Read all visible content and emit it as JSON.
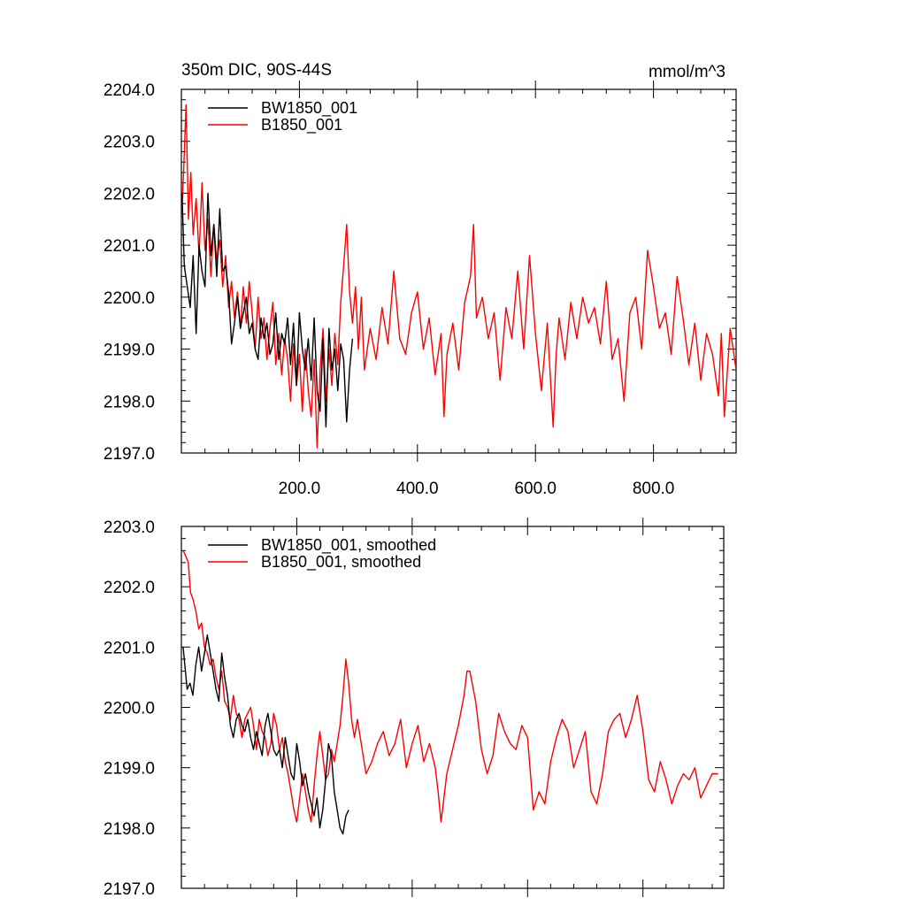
{
  "chart_data": [
    {
      "type": "line",
      "title": "350m DIC, 90S-44S",
      "units": "mmol/m^3",
      "xlim": [
        0,
        940
      ],
      "ylim": [
        2197.0,
        2204.0
      ],
      "x_ticks": [
        200,
        400,
        600,
        800
      ],
      "x_tick_labels": [
        "200.0",
        "400.0",
        "600.0",
        "800.0"
      ],
      "y_ticks": [
        2197,
        2198,
        2199,
        2200,
        2201,
        2202,
        2203,
        2204
      ],
      "y_tick_labels": [
        "2197.0",
        "2198.0",
        "2199.0",
        "2200.0",
        "2201.0",
        "2202.0",
        "2203.0",
        "2204.0"
      ],
      "legend_position": "top-left",
      "series": [
        {
          "name": "BW1850_001",
          "color": "#000000",
          "x": [
            1,
            5,
            10,
            15,
            20,
            25,
            30,
            35,
            40,
            45,
            50,
            55,
            60,
            65,
            70,
            75,
            80,
            85,
            90,
            95,
            100,
            105,
            110,
            115,
            120,
            125,
            130,
            135,
            140,
            145,
            150,
            155,
            160,
            165,
            170,
            175,
            180,
            185,
            190,
            195,
            200,
            205,
            210,
            215,
            220,
            225,
            230,
            235,
            240,
            245,
            250,
            255,
            260,
            265,
            270,
            275,
            280,
            285,
            290
          ],
          "y": [
            2202.0,
            2200.6,
            2200.2,
            2199.8,
            2200.8,
            2199.3,
            2201.0,
            2200.5,
            2200.2,
            2202.0,
            2200.8,
            2201.4,
            2200.4,
            2201.7,
            2200.5,
            2200.6,
            2200.1,
            2199.1,
            2199.5,
            2200.0,
            2199.4,
            2199.7,
            2200.0,
            2199.3,
            2199.5,
            2199.0,
            2198.8,
            2199.6,
            2199.2,
            2199.5,
            2198.9,
            2199.1,
            2199.7,
            2198.8,
            2199.3,
            2199.1,
            2199.6,
            2198.7,
            2199.5,
            2198.3,
            2199.7,
            2199.0,
            2198.6,
            2199.2,
            2198.4,
            2199.6,
            2198.2,
            2197.8,
            2199.2,
            2197.5,
            2199.4,
            2198.6,
            2199.0,
            2198.2,
            2199.1,
            2198.8,
            2197.6,
            2198.6,
            2199.2
          ]
        },
        {
          "name": "B1850_001",
          "color": "#ff0000",
          "x": [
            1,
            4,
            8,
            12,
            16,
            20,
            25,
            30,
            35,
            40,
            45,
            50,
            55,
            60,
            65,
            70,
            75,
            80,
            85,
            90,
            95,
            100,
            105,
            110,
            115,
            120,
            125,
            130,
            135,
            140,
            145,
            150,
            155,
            160,
            165,
            170,
            175,
            180,
            185,
            190,
            195,
            200,
            205,
            210,
            215,
            220,
            225,
            230,
            235,
            240,
            245,
            250,
            255,
            260,
            265,
            270,
            275,
            280,
            285,
            290,
            295,
            300,
            305,
            310,
            320,
            330,
            340,
            350,
            360,
            370,
            380,
            390,
            400,
            410,
            420,
            430,
            440,
            445,
            450,
            460,
            470,
            480,
            490,
            495,
            500,
            510,
            520,
            530,
            540,
            550,
            560,
            570,
            580,
            590,
            600,
            610,
            620,
            630,
            635,
            640,
            650,
            660,
            670,
            680,
            690,
            700,
            710,
            720,
            730,
            740,
            750,
            760,
            770,
            780,
            790,
            800,
            810,
            820,
            830,
            840,
            850,
            860,
            870,
            880,
            890,
            900,
            910,
            915,
            920,
            930,
            940
          ],
          "y": [
            2201.7,
            2202.5,
            2203.7,
            2201.5,
            2202.4,
            2201.2,
            2201.9,
            2200.8,
            2202.2,
            2200.9,
            2201.5,
            2200.4,
            2201.4,
            2200.7,
            2201.1,
            2200.2,
            2200.8,
            2199.8,
            2200.3,
            2199.6,
            2200.1,
            2199.4,
            2200.2,
            2199.5,
            2200.3,
            2199.7,
            2199.0,
            2200.0,
            2199.2,
            2199.6,
            2198.8,
            2199.4,
            2199.9,
            2198.7,
            2199.3,
            2198.5,
            2199.2,
            2198.8,
            2198.0,
            2199.1,
            2198.3,
            2198.9,
            2197.8,
            2199.0,
            2198.2,
            2197.7,
            2198.8,
            2197.1,
            2198.6,
            2199.4,
            2198.0,
            2199.0,
            2198.3,
            2199.3,
            2198.7,
            2199.9,
            2200.6,
            2201.4,
            2200.1,
            2199.5,
            2200.2,
            2199.0,
            2200.0,
            2198.6,
            2199.4,
            2198.8,
            2199.8,
            2199.1,
            2200.5,
            2199.2,
            2198.9,
            2199.7,
            2200.1,
            2199.0,
            2199.6,
            2198.5,
            2199.3,
            2197.7,
            2198.9,
            2199.5,
            2198.6,
            2199.9,
            2200.4,
            2201.4,
            2199.6,
            2200.0,
            2199.2,
            2199.7,
            2198.4,
            2199.8,
            2199.2,
            2200.5,
            2199.0,
            2200.8,
            2199.3,
            2198.2,
            2199.5,
            2197.5,
            2198.9,
            2199.6,
            2198.8,
            2199.9,
            2199.2,
            2200.0,
            2199.5,
            2199.8,
            2199.1,
            2200.3,
            2198.8,
            2199.2,
            2198.0,
            2199.7,
            2200.0,
            2199.0,
            2200.9,
            2200.2,
            2199.4,
            2199.7,
            2198.9,
            2200.4,
            2199.6,
            2198.7,
            2199.5,
            2198.4,
            2199.3,
            2198.9,
            2198.1,
            2199.3,
            2197.7,
            2199.4,
            2198.6
          ]
        }
      ]
    },
    {
      "type": "line",
      "title": "",
      "xlim": [
        0,
        940
      ],
      "ylim": [
        2197.0,
        2203.0
      ],
      "x_ticks": [
        200,
        400,
        600,
        800
      ],
      "y_ticks": [
        2197,
        2198,
        2199,
        2200,
        2201,
        2202,
        2203
      ],
      "y_tick_labels": [
        "2197.0",
        "2198.0",
        "2199.0",
        "2200.0",
        "2201.0",
        "2202.0",
        "2203.0"
      ],
      "legend_position": "top-left",
      "series": [
        {
          "name": "BW1850_001, smoothed",
          "color": "#000000",
          "x": [
            3,
            10,
            15,
            20,
            25,
            30,
            35,
            40,
            45,
            50,
            55,
            60,
            65,
            70,
            75,
            80,
            85,
            90,
            95,
            100,
            105,
            110,
            115,
            120,
            125,
            130,
            135,
            140,
            145,
            150,
            155,
            160,
            165,
            170,
            175,
            180,
            185,
            190,
            195,
            200,
            205,
            210,
            215,
            220,
            225,
            230,
            235,
            240,
            245,
            250,
            255,
            260,
            265,
            270,
            275,
            280,
            285,
            290
          ],
          "y": [
            2201.0,
            2200.3,
            2200.4,
            2200.2,
            2200.7,
            2201.0,
            2200.6,
            2200.9,
            2201.2,
            2200.9,
            2200.6,
            2200.3,
            2200.1,
            2200.9,
            2200.5,
            2200.2,
            2199.7,
            2199.5,
            2199.8,
            2199.9,
            2199.7,
            2199.6,
            2199.8,
            2199.5,
            2199.3,
            2199.6,
            2199.4,
            2199.2,
            2199.7,
            2199.9,
            2199.6,
            2199.3,
            2199.2,
            2199.3,
            2199.0,
            2199.5,
            2199.2,
            2198.9,
            2198.8,
            2199.4,
            2199.1,
            2198.7,
            2198.9,
            2198.6,
            2198.4,
            2198.2,
            2198.5,
            2198.0,
            2198.3,
            2198.8,
            2199.4,
            2199.2,
            2198.6,
            2198.3,
            2198.0,
            2197.9,
            2198.2,
            2198.3
          ]
        },
        {
          "name": "B1850_001, smoothed",
          "color": "#ff0000",
          "x": [
            3,
            8,
            12,
            16,
            20,
            25,
            30,
            35,
            40,
            45,
            50,
            55,
            60,
            65,
            70,
            75,
            80,
            85,
            90,
            95,
            100,
            105,
            110,
            115,
            120,
            125,
            130,
            135,
            140,
            145,
            150,
            155,
            160,
            165,
            170,
            175,
            180,
            185,
            190,
            195,
            200,
            205,
            210,
            215,
            220,
            225,
            230,
            235,
            240,
            245,
            250,
            255,
            260,
            265,
            270,
            275,
            280,
            285,
            290,
            295,
            300,
            305,
            310,
            320,
            330,
            340,
            350,
            360,
            370,
            380,
            390,
            400,
            410,
            420,
            430,
            440,
            445,
            450,
            460,
            470,
            480,
            490,
            495,
            500,
            510,
            520,
            530,
            540,
            550,
            560,
            570,
            580,
            590,
            600,
            610,
            620,
            630,
            640,
            650,
            660,
            670,
            680,
            690,
            700,
            710,
            720,
            730,
            740,
            750,
            760,
            770,
            780,
            790,
            800,
            810,
            820,
            830,
            840,
            850,
            860,
            870,
            880,
            890,
            900,
            910,
            920,
            930
          ],
          "y": [
            2202.6,
            2202.5,
            2202.4,
            2201.9,
            2201.8,
            2201.6,
            2201.3,
            2201.4,
            2201.0,
            2200.9,
            2200.7,
            2200.8,
            2200.5,
            2200.3,
            2200.6,
            2200.1,
            2200.0,
            2199.8,
            2200.2,
            2199.9,
            2199.8,
            2199.5,
            2199.8,
            2199.9,
            2200.0,
            2199.7,
            2199.3,
            2199.8,
            2199.6,
            2199.5,
            2199.2,
            2199.4,
            2199.9,
            2199.7,
            2199.3,
            2199.5,
            2199.1,
            2198.9,
            2198.6,
            2198.3,
            2198.1,
            2198.5,
            2198.9,
            2198.6,
            2198.3,
            2198.1,
            2198.7,
            2199.2,
            2199.6,
            2199.2,
            2198.8,
            2198.9,
            2199.3,
            2199.1,
            2199.4,
            2199.7,
            2200.2,
            2200.8,
            2200.4,
            2199.8,
            2199.5,
            2199.8,
            2199.5,
            2198.9,
            2199.1,
            2199.4,
            2199.6,
            2199.2,
            2199.4,
            2199.8,
            2199.0,
            2199.4,
            2199.7,
            2199.1,
            2199.4,
            2199.0,
            2198.6,
            2198.1,
            2198.9,
            2199.3,
            2199.7,
            2200.2,
            2200.6,
            2200.6,
            2200.1,
            2199.3,
            2198.9,
            2199.2,
            2199.9,
            2199.6,
            2199.4,
            2199.3,
            2199.7,
            2199.5,
            2198.3,
            2198.6,
            2198.4,
            2199.1,
            2199.5,
            2199.8,
            2199.6,
            2199.0,
            2199.3,
            2199.6,
            2198.6,
            2198.4,
            2198.9,
            2199.6,
            2199.8,
            2199.9,
            2199.5,
            2199.8,
            2200.2,
            2199.6,
            2198.8,
            2198.6,
            2199.1,
            2198.8,
            2198.4,
            2198.7,
            2198.9,
            2198.8,
            2199.0,
            2198.5,
            2198.7,
            2198.9,
            2198.9
          ]
        }
      ]
    }
  ]
}
